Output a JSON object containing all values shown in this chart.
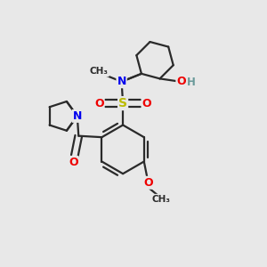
{
  "bg_color": "#e8e8e8",
  "bond_color": "#2a2a2a",
  "atom_colors": {
    "N": "#0000ee",
    "O": "#ee0000",
    "S": "#bbbb00",
    "H": "#6a9a9a",
    "C": "#2a2a2a"
  },
  "lw": 1.6
}
